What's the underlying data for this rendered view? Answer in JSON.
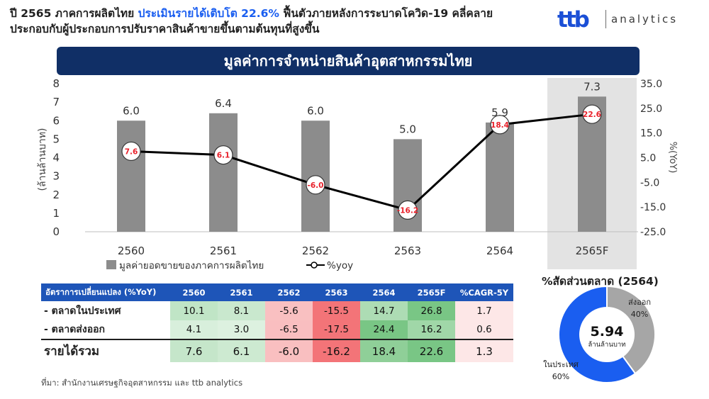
{
  "headline": {
    "part1": "ปี 2565 ภาคการผลิตไทย ",
    "highlight": "ประเมินรายได้เติบโต 22.6%",
    "part2": " ฟื้นตัวภายหลังการระบาดโควิด-19 คลี่คลาย ประกอบกับผู้ประกอบการปรับราคาสินค้าขายขึ้นตามต้นทุนที่สูงขึ้น"
  },
  "logo": {
    "brand": "ttb",
    "sub": "analytics"
  },
  "banner": "มูลค่าการจำหน่ายสินค้าอุตสาหกรรมไทย",
  "chart_data": {
    "type": "bar",
    "categories": [
      "2560",
      "2561",
      "2562",
      "2563",
      "2564",
      "2565F"
    ],
    "series": [
      {
        "name": "มูลค่ายอดขายของภาคการผลิตไทย",
        "type": "bar",
        "axis": "left",
        "values": [
          6.0,
          6.4,
          6.0,
          5.0,
          5.9,
          7.3
        ],
        "color": "#8c8c8c"
      },
      {
        "name": "%yoy",
        "type": "line",
        "axis": "right",
        "values": [
          7.6,
          6.1,
          -6.0,
          -16.2,
          18.4,
          22.6
        ],
        "color": "#000000",
        "label_color": "#e8202a"
      }
    ],
    "bar_labels": [
      "6.0",
      "6.4",
      "6.0",
      "5.0",
      "5.9",
      "7.3"
    ],
    "line_labels": [
      "7.6",
      "6.1",
      "-6.0",
      "-16.2",
      "18.4",
      "22.6"
    ],
    "ylabel": "(ล้านล้านบาท)",
    "y2label": "%(YoY)",
    "ylim": [
      0,
      8
    ],
    "yticks": [
      "0",
      "1",
      "2",
      "3",
      "4",
      "5",
      "6",
      "7",
      "8"
    ],
    "y2lim": [
      -25,
      35
    ],
    "y2ticks": [
      "-25.0",
      "-15.0",
      "-5.0",
      "5.0",
      "15.0",
      "25.0",
      "35.0"
    ],
    "highlight_category": "2565F",
    "highlight_color": "#e3e3e3",
    "grid": false,
    "legend_position": "bottom"
  },
  "table": {
    "headers": [
      "อัตราการเปลี่ยนแปลง (%YoY)",
      "2560",
      "2561",
      "2562",
      "2563",
      "2564",
      "2565F",
      "%CAGR-5Y"
    ],
    "rows": [
      {
        "label": "- ตลาดในประเทศ",
        "values": [
          "10.1",
          "8.1",
          "-5.6",
          "-15.5",
          "14.7",
          "26.8",
          "1.7"
        ],
        "nums": [
          10.1,
          8.1,
          -5.6,
          -15.5,
          14.7,
          26.8,
          1.7
        ]
      },
      {
        "label": "- ตลาดส่งออก",
        "values": [
          "4.1",
          "3.0",
          "-6.5",
          "-17.5",
          "24.4",
          "16.2",
          "0.6"
        ],
        "nums": [
          4.1,
          3.0,
          -6.5,
          -17.5,
          24.4,
          16.2,
          0.6
        ]
      },
      {
        "label": "รายได้รวม",
        "values": [
          "7.6",
          "6.1",
          "-6.0",
          "-16.2",
          "18.4",
          "22.6",
          "1.3"
        ],
        "nums": [
          7.6,
          6.1,
          -6.0,
          -16.2,
          18.4,
          22.6,
          1.3
        ]
      }
    ],
    "header_color": "#1e55b8",
    "positive_color": "#5cba6a",
    "negative_color": "#f0555a"
  },
  "source": "ที่มา: สำนักงานเศรษฐกิจอุตสาหกรรม และ ttb analytics",
  "donut": {
    "title": "%สัดส่วนตลาด (2564)",
    "center_value": "5.94",
    "center_label": "ล้านล้านบาท",
    "slices": [
      {
        "label": "ในประเทศ",
        "pct_label": "60%",
        "value": 60,
        "color": "#1a5ef0"
      },
      {
        "label": "ส่งออก",
        "pct_label": "40%",
        "value": 40,
        "color": "#a6a6a6"
      }
    ]
  }
}
